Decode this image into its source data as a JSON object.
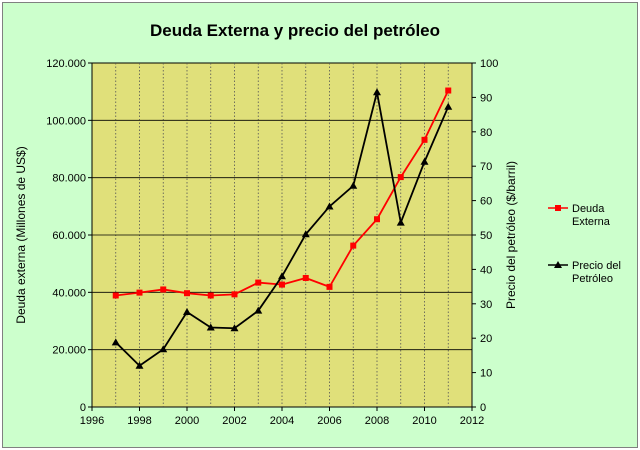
{
  "chart_data": {
    "type": "line",
    "title": "Deuda Externa y precio del petróleo",
    "xlabel": "",
    "ylabel": "Deuda externa (Millones de US$)",
    "y2label": "Precio del petróleo ($/barril)",
    "xlim": [
      1996,
      2012
    ],
    "ylim": [
      0,
      120000
    ],
    "y2lim": [
      0,
      100
    ],
    "x_ticks": [
      "1996",
      "1998",
      "2000",
      "2002",
      "2004",
      "2006",
      "2008",
      "2010",
      "2012"
    ],
    "y_ticks": [
      "0",
      "20.000",
      "40.000",
      "60.000",
      "80.000",
      "100.000",
      "120.000"
    ],
    "y2_ticks": [
      "0",
      "10",
      "20",
      "30",
      "40",
      "50",
      "60",
      "70",
      "80",
      "90",
      "100"
    ],
    "x": [
      1997,
      1998,
      1999,
      2000,
      2001,
      2002,
      2003,
      2004,
      2005,
      2006,
      2007,
      2008,
      2009,
      2010,
      2011
    ],
    "series": [
      {
        "name": "Deuda Externa",
        "axis": "left",
        "color": "#ff0000",
        "marker": "square",
        "values": [
          38900,
          39900,
          41000,
          39700,
          38900,
          39300,
          43400,
          42700,
          45000,
          41900,
          56300,
          65500,
          80200,
          93200,
          110400
        ]
      },
      {
        "name": "Precio del Petróleo",
        "axis": "right",
        "color": "#000000",
        "marker": "triangle",
        "values": [
          18.8,
          12,
          16.8,
          27.6,
          23.1,
          22.9,
          28,
          38,
          50.2,
          58.3,
          64.3,
          91.5,
          53.6,
          71.3,
          87.3
        ]
      }
    ],
    "legend": [
      {
        "line1": "Deuda",
        "line2": "Externa"
      },
      {
        "line1": "Precio del",
        "line2": "Petróleo"
      }
    ],
    "legend_position": "right",
    "grid": "vertical-dotted",
    "plot_background": "#e0e07a",
    "chart_background": "#ccffcc"
  }
}
